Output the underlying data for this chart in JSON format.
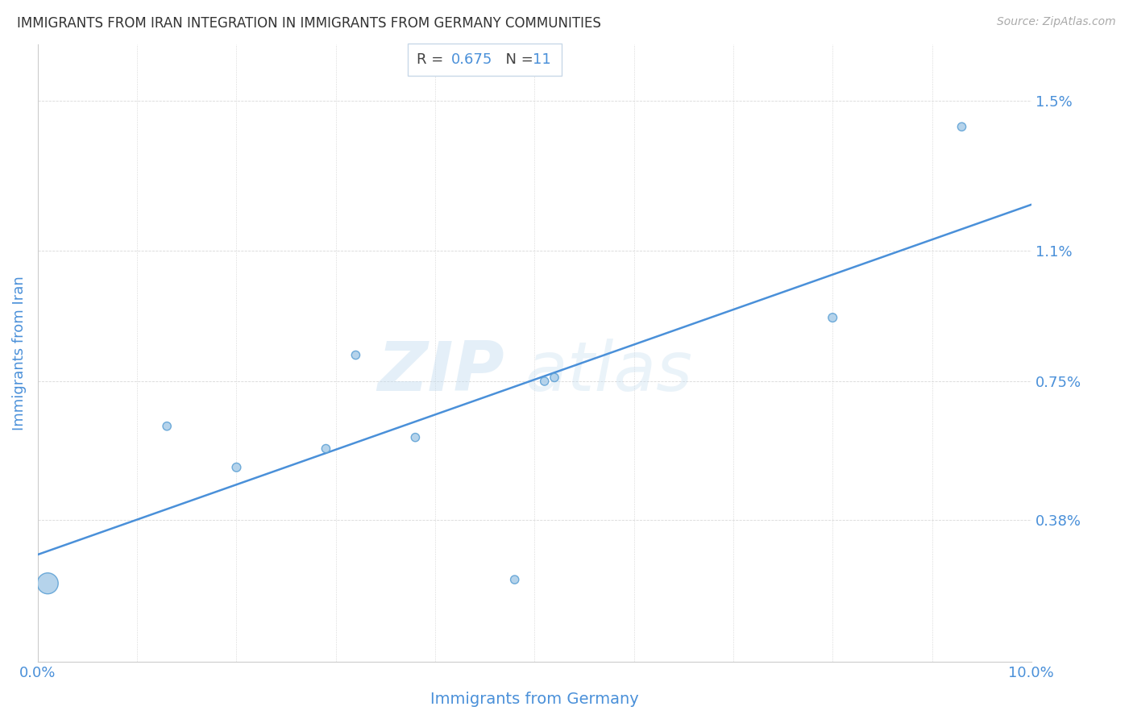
{
  "title": "IMMIGRANTS FROM IRAN INTEGRATION IN IMMIGRANTS FROM GERMANY COMMUNITIES",
  "source": "Source: ZipAtlas.com",
  "xlabel": "Immigrants from Germany",
  "ylabel": "Immigrants from Iran",
  "watermark_zip": "ZIP",
  "watermark_atlas": "atlas",
  "R": 0.675,
  "N": 11,
  "x_points": [
    0.001,
    0.013,
    0.02,
    0.029,
    0.032,
    0.038,
    0.051,
    0.052,
    0.08,
    0.048,
    0.093
  ],
  "y_points": [
    0.0021,
    0.0063,
    0.0052,
    0.0057,
    0.0082,
    0.006,
    0.0075,
    0.0076,
    0.0092,
    0.0022,
    0.0143
  ],
  "sizes": [
    350,
    55,
    60,
    55,
    55,
    55,
    55,
    55,
    60,
    55,
    55
  ],
  "point_color": "#a8cce8",
  "point_edge_color": "#5a9fd4",
  "line_color": "#4a90d9",
  "box_facecolor": "#ffffff",
  "box_edgecolor": "#c8d8e8",
  "r_text_color": "#555555",
  "rval_color": "#4a90d9",
  "n_text_color": "#555555",
  "nval_color": "#4a90d9",
  "label_color": "#4a90d9",
  "title_color": "#333333",
  "source_color": "#aaaaaa",
  "grid_color": "#d8d8d8",
  "background_color": "#ffffff",
  "xlim": [
    0.0,
    0.1
  ],
  "ylim": [
    0.0,
    0.0165
  ],
  "yticks": [
    0.0038,
    0.0075,
    0.011,
    0.015
  ],
  "ytick_labels": [
    "0.38%",
    "0.75%",
    "1.1%",
    "1.5%"
  ],
  "xtick_labels": [
    "0.0%",
    "10.0%"
  ],
  "figsize": [
    14.06,
    8.92
  ],
  "dpi": 100
}
